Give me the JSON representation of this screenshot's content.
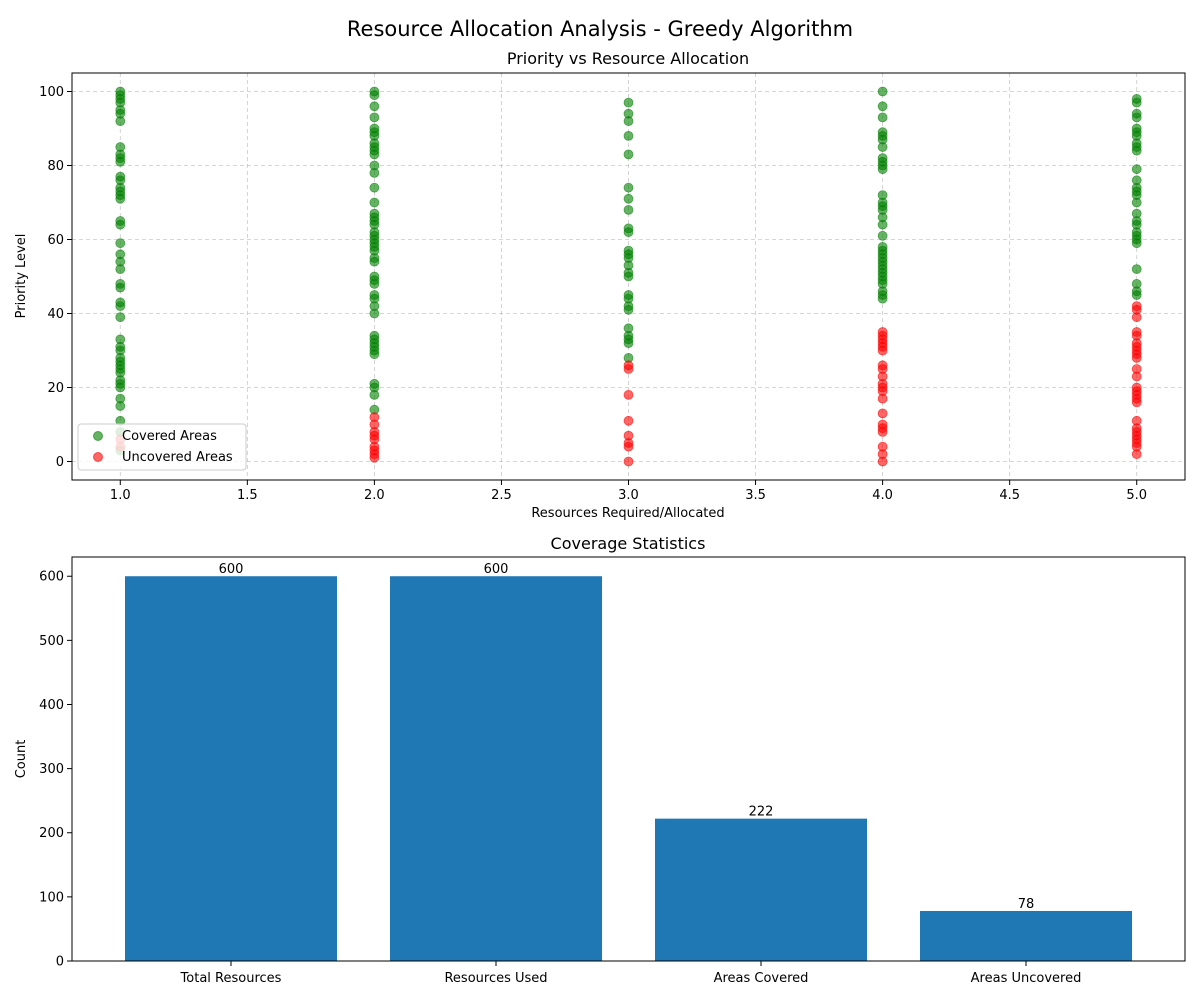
{
  "figure": {
    "suptitle": "Resource Allocation Analysis - Greedy Algorithm"
  },
  "chart_data": [
    {
      "type": "scatter",
      "title": "Priority vs Resource Allocation",
      "xlabel": "Resources Required/Allocated",
      "ylabel": "Priority Level",
      "xlim": [
        0.81,
        5.19
      ],
      "ylim": [
        -5,
        105
      ],
      "xticks": [
        1.0,
        1.5,
        2.0,
        2.5,
        3.0,
        3.5,
        4.0,
        4.5,
        5.0
      ],
      "yticks": [
        0,
        20,
        40,
        60,
        80,
        100
      ],
      "grid": true,
      "legend_position": "lower-left",
      "series": [
        {
          "name": "Covered Areas",
          "color": "#008000",
          "points": [
            [
              1,
              3
            ],
            [
              1,
              8
            ],
            [
              1,
              11
            ],
            [
              1,
              15
            ],
            [
              1,
              17
            ],
            [
              1,
              20
            ],
            [
              1,
              21
            ],
            [
              1,
              22
            ],
            [
              1,
              24
            ],
            [
              1,
              25
            ],
            [
              1,
              26
            ],
            [
              1,
              27
            ],
            [
              1,
              28
            ],
            [
              1,
              30
            ],
            [
              1,
              31
            ],
            [
              1,
              33
            ],
            [
              1,
              39
            ],
            [
              1,
              42
            ],
            [
              1,
              43
            ],
            [
              1,
              47
            ],
            [
              1,
              48
            ],
            [
              1,
              52
            ],
            [
              1,
              54
            ],
            [
              1,
              56
            ],
            [
              1,
              59
            ],
            [
              1,
              64
            ],
            [
              1,
              65
            ],
            [
              1,
              71
            ],
            [
              1,
              72
            ],
            [
              1,
              73
            ],
            [
              1,
              74
            ],
            [
              1,
              76
            ],
            [
              1,
              77
            ],
            [
              1,
              81
            ],
            [
              1,
              82
            ],
            [
              1,
              83
            ],
            [
              1,
              85
            ],
            [
              1,
              92
            ],
            [
              1,
              94
            ],
            [
              1,
              95
            ],
            [
              1,
              97
            ],
            [
              1,
              98
            ],
            [
              1,
              99
            ],
            [
              1,
              100
            ],
            [
              2,
              14
            ],
            [
              2,
              18
            ],
            [
              2,
              20
            ],
            [
              2,
              21
            ],
            [
              2,
              29
            ],
            [
              2,
              30
            ],
            [
              2,
              31
            ],
            [
              2,
              32
            ],
            [
              2,
              33
            ],
            [
              2,
              34
            ],
            [
              2,
              40
            ],
            [
              2,
              42
            ],
            [
              2,
              44
            ],
            [
              2,
              45
            ],
            [
              2,
              48
            ],
            [
              2,
              49
            ],
            [
              2,
              50
            ],
            [
              2,
              54
            ],
            [
              2,
              55
            ],
            [
              2,
              57
            ],
            [
              2,
              58
            ],
            [
              2,
              59
            ],
            [
              2,
              60
            ],
            [
              2,
              61
            ],
            [
              2,
              62
            ],
            [
              2,
              64
            ],
            [
              2,
              65
            ],
            [
              2,
              66
            ],
            [
              2,
              67
            ],
            [
              2,
              70
            ],
            [
              2,
              74
            ],
            [
              2,
              78
            ],
            [
              2,
              80
            ],
            [
              2,
              83
            ],
            [
              2,
              84
            ],
            [
              2,
              85
            ],
            [
              2,
              86
            ],
            [
              2,
              88
            ],
            [
              2,
              89
            ],
            [
              2,
              90
            ],
            [
              2,
              93
            ],
            [
              2,
              96
            ],
            [
              2,
              99
            ],
            [
              2,
              100
            ],
            [
              3,
              28
            ],
            [
              3,
              32
            ],
            [
              3,
              33
            ],
            [
              3,
              34
            ],
            [
              3,
              36
            ],
            [
              3,
              41
            ],
            [
              3,
              42
            ],
            [
              3,
              44
            ],
            [
              3,
              45
            ],
            [
              3,
              50
            ],
            [
              3,
              51
            ],
            [
              3,
              53
            ],
            [
              3,
              55
            ],
            [
              3,
              56
            ],
            [
              3,
              57
            ],
            [
              3,
              62
            ],
            [
              3,
              63
            ],
            [
              3,
              68
            ],
            [
              3,
              71
            ],
            [
              3,
              74
            ],
            [
              3,
              83
            ],
            [
              3,
              88
            ],
            [
              3,
              92
            ],
            [
              3,
              94
            ],
            [
              3,
              97
            ],
            [
              4,
              44
            ],
            [
              4,
              45
            ],
            [
              4,
              46
            ],
            [
              4,
              48
            ],
            [
              4,
              49
            ],
            [
              4,
              50
            ],
            [
              4,
              51
            ],
            [
              4,
              52
            ],
            [
              4,
              53
            ],
            [
              4,
              54
            ],
            [
              4,
              55
            ],
            [
              4,
              56
            ],
            [
              4,
              57
            ],
            [
              4,
              58
            ],
            [
              4,
              61
            ],
            [
              4,
              64
            ],
            [
              4,
              66
            ],
            [
              4,
              68
            ],
            [
              4,
              69
            ],
            [
              4,
              70
            ],
            [
              4,
              72
            ],
            [
              4,
              79
            ],
            [
              4,
              80
            ],
            [
              4,
              81
            ],
            [
              4,
              82
            ],
            [
              4,
              85
            ],
            [
              4,
              87
            ],
            [
              4,
              88
            ],
            [
              4,
              89
            ],
            [
              4,
              93
            ],
            [
              4,
              96
            ],
            [
              4,
              100
            ],
            [
              5,
              45
            ],
            [
              5,
              46
            ],
            [
              5,
              48
            ],
            [
              5,
              52
            ],
            [
              5,
              59
            ],
            [
              5,
              60
            ],
            [
              5,
              61
            ],
            [
              5,
              62
            ],
            [
              5,
              64
            ],
            [
              5,
              65
            ],
            [
              5,
              67
            ],
            [
              5,
              70
            ],
            [
              5,
              72
            ],
            [
              5,
              73
            ],
            [
              5,
              74
            ],
            [
              5,
              76
            ],
            [
              5,
              79
            ],
            [
              5,
              84
            ],
            [
              5,
              85
            ],
            [
              5,
              86
            ],
            [
              5,
              88
            ],
            [
              5,
              89
            ],
            [
              5,
              90
            ],
            [
              5,
              93
            ],
            [
              5,
              94
            ],
            [
              5,
              97
            ],
            [
              5,
              98
            ]
          ]
        },
        {
          "name": "Uncovered Areas",
          "color": "#ff0000",
          "points": [
            [
              1,
              4
            ],
            [
              1,
              6
            ],
            [
              2,
              1
            ],
            [
              2,
              2
            ],
            [
              2,
              3
            ],
            [
              2,
              4
            ],
            [
              2,
              6
            ],
            [
              2,
              7
            ],
            [
              2,
              8
            ],
            [
              2,
              10
            ],
            [
              2,
              12
            ],
            [
              3,
              0
            ],
            [
              3,
              4
            ],
            [
              3,
              5
            ],
            [
              3,
              7
            ],
            [
              3,
              11
            ],
            [
              3,
              18
            ],
            [
              3,
              25
            ],
            [
              3,
              26
            ],
            [
              4,
              0
            ],
            [
              4,
              2
            ],
            [
              4,
              4
            ],
            [
              4,
              8
            ],
            [
              4,
              9
            ],
            [
              4,
              10
            ],
            [
              4,
              13
            ],
            [
              4,
              17
            ],
            [
              4,
              19
            ],
            [
              4,
              20
            ],
            [
              4,
              21
            ],
            [
              4,
              23
            ],
            [
              4,
              25
            ],
            [
              4,
              26
            ],
            [
              4,
              30
            ],
            [
              4,
              31
            ],
            [
              4,
              32
            ],
            [
              4,
              33
            ],
            [
              4,
              34
            ],
            [
              4,
              35
            ],
            [
              5,
              2
            ],
            [
              5,
              4
            ],
            [
              5,
              5
            ],
            [
              5,
              6
            ],
            [
              5,
              7
            ],
            [
              5,
              8
            ],
            [
              5,
              9
            ],
            [
              5,
              11
            ],
            [
              5,
              16
            ],
            [
              5,
              17
            ],
            [
              5,
              18
            ],
            [
              5,
              19
            ],
            [
              5,
              20
            ],
            [
              5,
              23
            ],
            [
              5,
              25
            ],
            [
              5,
              28
            ],
            [
              5,
              29
            ],
            [
              5,
              30
            ],
            [
              5,
              31
            ],
            [
              5,
              32
            ],
            [
              5,
              34
            ],
            [
              5,
              35
            ],
            [
              5,
              39
            ],
            [
              5,
              41
            ],
            [
              5,
              42
            ]
          ]
        }
      ]
    },
    {
      "type": "bar",
      "title": "Coverage Statistics",
      "xlabel": "",
      "ylabel": "Count",
      "categories": [
        "Total Resources",
        "Resources Used",
        "Areas Covered",
        "Areas Uncovered"
      ],
      "values": [
        600,
        600,
        222,
        78
      ],
      "data_labels": [
        "600",
        "600",
        "222",
        "78"
      ],
      "ylim": [
        0,
        630
      ],
      "yticks": [
        0,
        100,
        200,
        300,
        400,
        500,
        600
      ],
      "color": "#1f77b4",
      "grid": false
    }
  ]
}
